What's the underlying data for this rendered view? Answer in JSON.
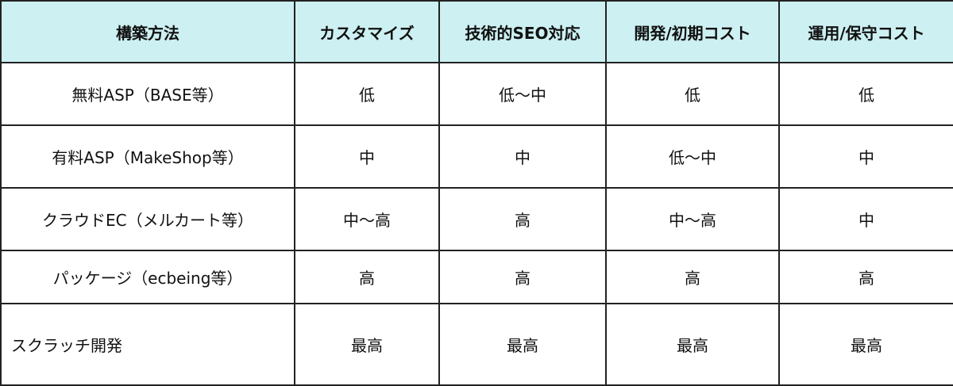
{
  "header": [
    "構築方法",
    "カスタマイズ",
    "技術的SEO対応",
    "開発/初期コスト",
    "運用/保守コスト"
  ],
  "rows": [
    [
      "無料ASP（BASE等）",
      "低",
      "低〜中",
      "低",
      "低"
    ],
    [
      "有料ASP（MakeShop等）",
      "中",
      "中",
      "低〜中",
      "中"
    ],
    [
      "クラウドEC（メルカート等）",
      "中〜高",
      "高",
      "中〜高",
      "中"
    ],
    [
      "パッケージ（ecbeing等）",
      "高",
      "高",
      "高",
      "高"
    ],
    [
      "スクラッチ開発",
      "最高",
      "最高",
      "最高",
      "最高"
    ]
  ],
  "colors": {
    "header_bg": "#cdf0f2",
    "border": "#222222"
  }
}
